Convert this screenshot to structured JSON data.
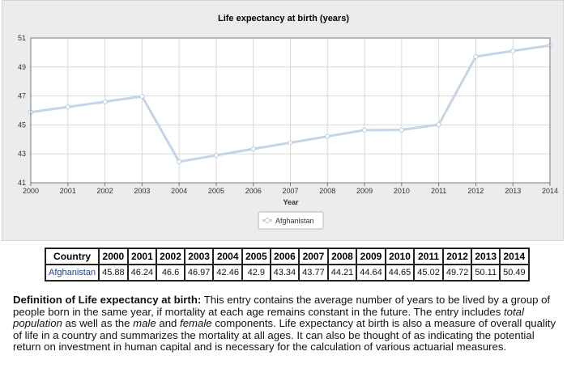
{
  "chart_data": {
    "type": "line",
    "title": "Life expectancy at birth (years)",
    "xlabel": "Year",
    "ylabel": "",
    "x": [
      "2000",
      "2001",
      "2002",
      "2003",
      "2004",
      "2005",
      "2006",
      "2007",
      "2008",
      "2009",
      "2010",
      "2011",
      "2012",
      "2013",
      "2014"
    ],
    "series": [
      {
        "name": "Afghanistan",
        "values": [
          45.88,
          46.24,
          46.6,
          46.97,
          42.46,
          42.9,
          43.34,
          43.77,
          44.21,
          44.64,
          44.65,
          45.02,
          49.72,
          50.11,
          50.49
        ]
      }
    ],
    "ylim": [
      41,
      51
    ],
    "yticks": [
      "41",
      "43",
      "45",
      "47",
      "49",
      "51"
    ],
    "grid": true,
    "legend": "bottom-center",
    "colors": {
      "line": "#c3d5e6",
      "marker_fill": "#ffffff",
      "marker_stroke": "#b9cde0"
    }
  },
  "table": {
    "header": [
      "Country",
      "2000",
      "2001",
      "2002",
      "2003",
      "2004",
      "2005",
      "2006",
      "2007",
      "2008",
      "2009",
      "2010",
      "2011",
      "2012",
      "2013",
      "2014"
    ],
    "rows": [
      [
        "Afghanistan",
        "45.88",
        "46.24",
        "46.6",
        "46.97",
        "42.46",
        "42.9",
        "43.34",
        "43.77",
        "44.21",
        "44.64",
        "44.65",
        "45.02",
        "49.72",
        "50.11",
        "50.49"
      ]
    ]
  },
  "definition": {
    "label": "Definition of Life expectancy at birth:",
    "text_1": " This entry contains the average number of years to be lived by a group of people born in the same year, if mortality at each age remains constant in the future. The entry includes ",
    "em_1": "total population",
    "text_2": " as well as the ",
    "em_2": "male",
    "text_3": " and ",
    "em_3": "female",
    "text_4": " components. Life expectancy at birth is also a measure of overall quality of life in a country and summarizes the mortality at all ages. It can also be thought of as indicating the potential return on investment in human capital and is necessary for the calculation of various actuarial measures."
  }
}
